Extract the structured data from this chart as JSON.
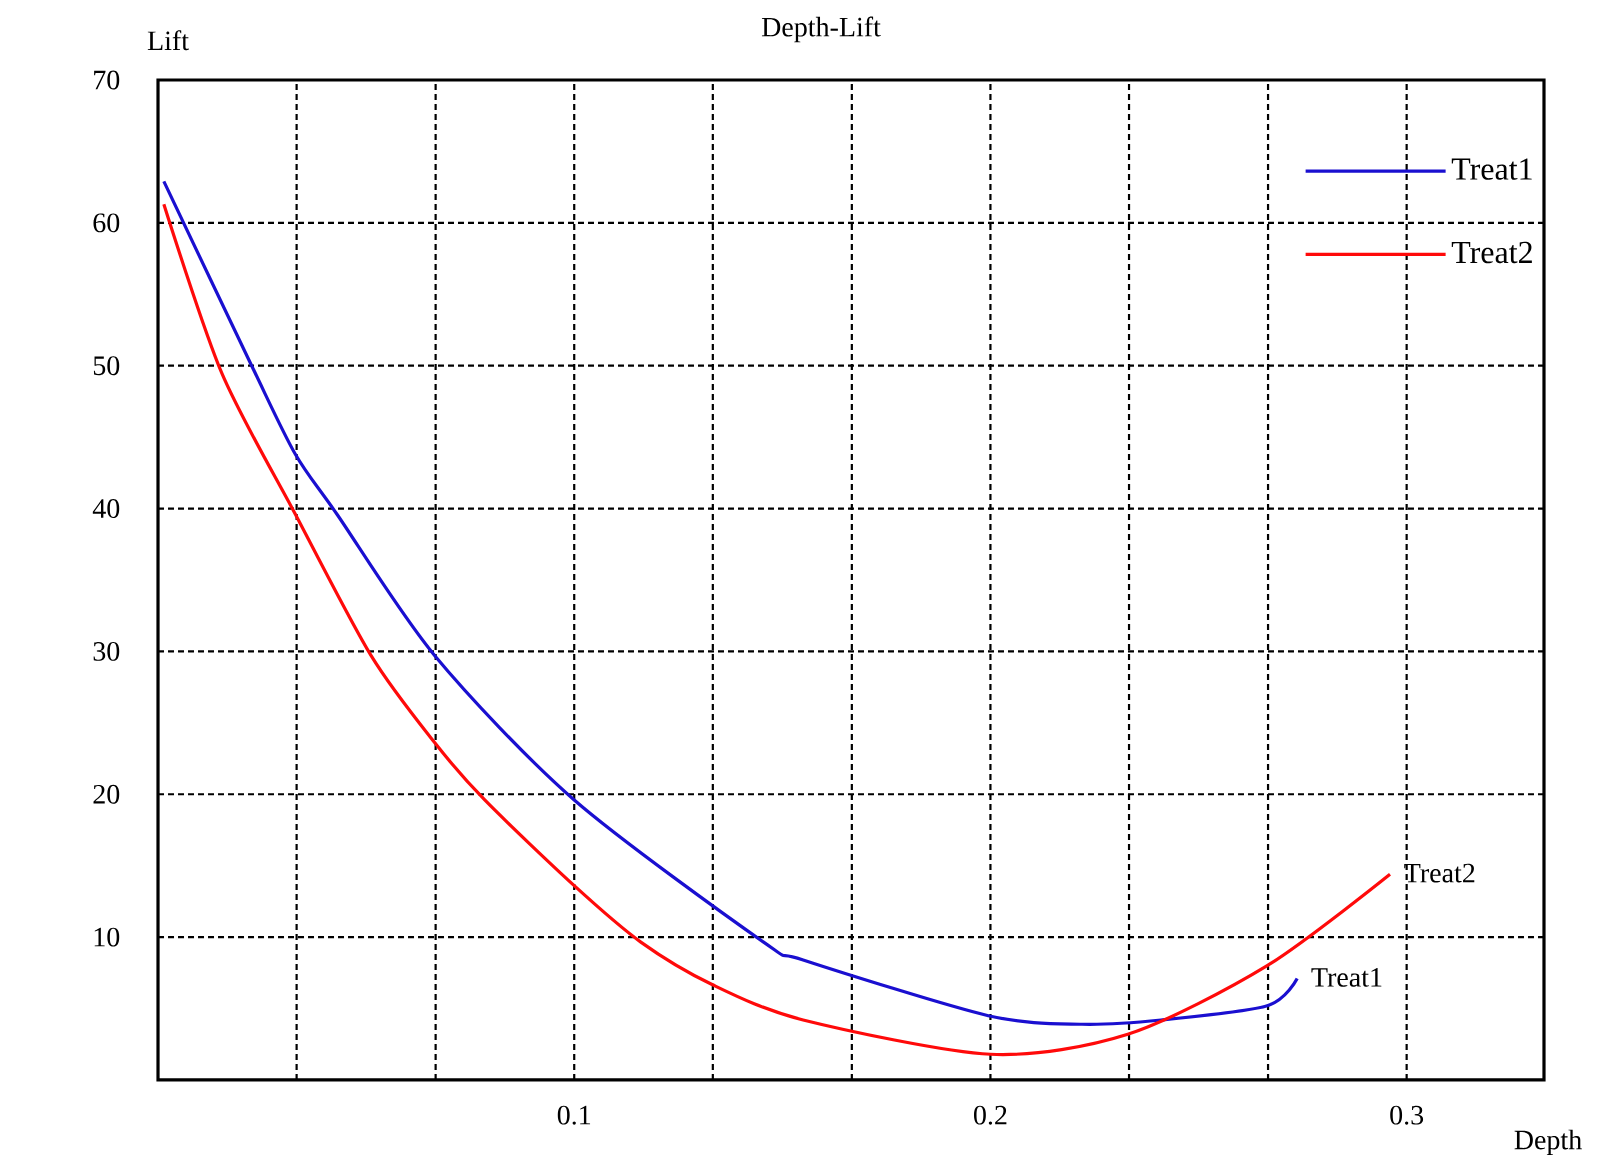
{
  "chart_data": {
    "type": "line",
    "title": "Depth-Lift",
    "xlabel": "Depth",
    "ylabel": "Lift",
    "xlim": [
      0,
      0.333
    ],
    "ylim": [
      0,
      70
    ],
    "xticks": [
      {
        "value": 0.0333,
        "label": null
      },
      {
        "value": 0.0667,
        "label": null
      },
      0.1,
      {
        "value": 0.1333,
        "label": null
      },
      {
        "value": 0.1667,
        "label": null
      },
      0.2,
      {
        "value": 0.2333,
        "label": null
      },
      {
        "value": 0.2667,
        "label": null
      },
      0.3
    ],
    "yticks": [
      10,
      20,
      30,
      40,
      50,
      60,
      70
    ],
    "grid": true,
    "legend": "top right",
    "marker": "none",
    "line_style": "solid",
    "series": [
      {
        "name": "Treat1",
        "color": "#1a0fd0",
        "x": [
          0.0014,
          0.0225,
          0.033,
          0.043,
          0.0665,
          0.1,
          0.1455,
          0.155,
          0.1995,
          0.222,
          0.241,
          0.2665,
          0.2737
        ],
        "values": [
          62.9,
          50,
          43.8,
          39.6,
          29.7,
          19.6,
          9.65,
          8.4,
          4.5,
          3.9,
          4.2,
          5.2,
          7.1
        ]
      },
      {
        "name": "Treat2",
        "color": "#ff0a0a",
        "x": [
          0.0014,
          0.0153,
          0.033,
          0.0512,
          0.0665,
          0.0785,
          0.1,
          0.116,
          0.133,
          0.155,
          0.2,
          0.233,
          0.2665,
          0.296
        ],
        "values": [
          61.3,
          49.5,
          39.6,
          29.7,
          23.6,
          19.6,
          13.6,
          9.65,
          6.7,
          4.2,
          1.8,
          3.2,
          8.0,
          14.4
        ]
      }
    ],
    "annotations": [
      {
        "text": "Treat1",
        "x": 0.2737,
        "y": 7.1
      },
      {
        "text": "Treat2",
        "x": 0.296,
        "y": 14.4
      }
    ]
  }
}
